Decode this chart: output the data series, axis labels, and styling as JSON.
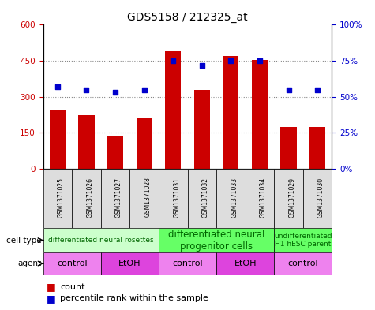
{
  "title": "GDS5158 / 212325_at",
  "samples": [
    "GSM1371025",
    "GSM1371026",
    "GSM1371027",
    "GSM1371028",
    "GSM1371031",
    "GSM1371032",
    "GSM1371033",
    "GSM1371034",
    "GSM1371029",
    "GSM1371030"
  ],
  "counts": [
    245,
    225,
    140,
    215,
    490,
    330,
    470,
    455,
    175,
    175
  ],
  "percentiles": [
    57,
    55,
    53,
    55,
    75,
    72,
    75,
    75,
    55,
    55
  ],
  "ylim_left": [
    0,
    600
  ],
  "ylim_right": [
    0,
    100
  ],
  "yticks_left": [
    0,
    150,
    300,
    450,
    600
  ],
  "yticks_right": [
    0,
    25,
    50,
    75,
    100
  ],
  "bar_color": "#cc0000",
  "dot_color": "#0000cc",
  "cell_type_groups": [
    {
      "label": "differentiated neural rosettes",
      "start": 0,
      "end": 3,
      "color": "#ccffcc",
      "fontsize": 6.5
    },
    {
      "label": "differentiated neural\nprogenitor cells",
      "start": 4,
      "end": 7,
      "color": "#66ff66",
      "fontsize": 8.5
    },
    {
      "label": "undifferentiated\nH1 hESC parent",
      "start": 8,
      "end": 9,
      "color": "#66ff66",
      "fontsize": 6.5
    }
  ],
  "agent_groups": [
    {
      "label": "control",
      "start": 0,
      "end": 1,
      "color": "#ee82ee"
    },
    {
      "label": "EtOH",
      "start": 2,
      "end": 3,
      "color": "#dd44dd"
    },
    {
      "label": "control",
      "start": 4,
      "end": 5,
      "color": "#ee82ee"
    },
    {
      "label": "EtOH",
      "start": 6,
      "end": 7,
      "color": "#dd44dd"
    },
    {
      "label": "control",
      "start": 8,
      "end": 9,
      "color": "#ee82ee"
    }
  ],
  "grid_yticks": [
    150,
    300,
    450
  ],
  "background_color": "#ffffff",
  "plot_bg": "#ffffff",
  "tick_label_color_left": "#cc0000",
  "tick_label_color_right": "#0000cc",
  "label_left": "cell type",
  "label_agent": "agent",
  "legend_count": "count",
  "legend_pct": "percentile rank within the sample"
}
